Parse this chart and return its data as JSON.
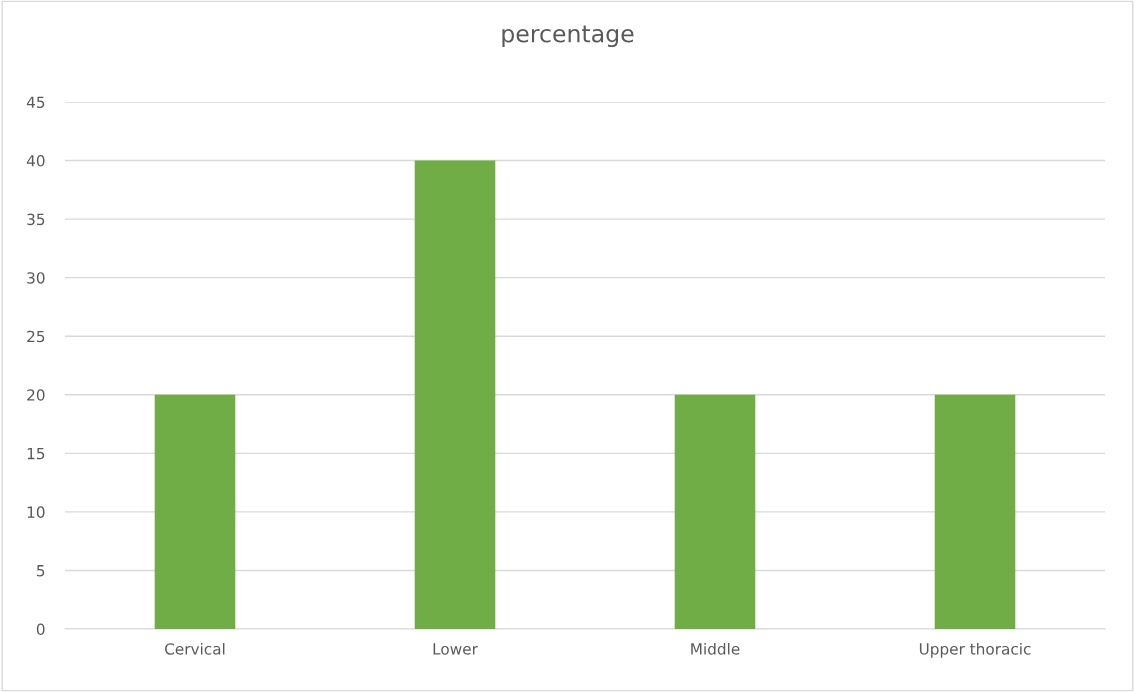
{
  "chart_data": {
    "type": "bar",
    "title": "percentage",
    "categories": [
      "Cervical",
      "Lower",
      "Middle",
      "Upper thoracic"
    ],
    "values": [
      20,
      40,
      20,
      20
    ],
    "color": "#70ad47",
    "ylim": [
      0,
      45
    ],
    "yticks": [
      0,
      5,
      10,
      15,
      20,
      25,
      30,
      35,
      40,
      45
    ],
    "grid": "y",
    "legend": false
  }
}
